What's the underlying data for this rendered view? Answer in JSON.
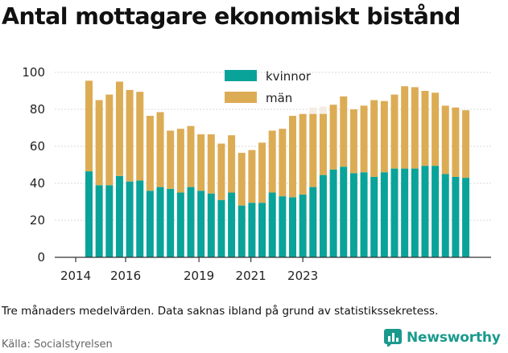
{
  "title": "Antal mottagare ekonomiskt bistånd",
  "note": "Tre månaders medelvärden. Data saknas ibland på grund av statistikssekretess.",
  "source": "Källa: Socialstyrelsen",
  "brand": "Newsworthy",
  "colors": {
    "kvinnor": "#0aa39a",
    "man": "#dcac55",
    "ghost": "#f5ede2",
    "grid": "#d9d9d9",
    "brand": "#1a9a8d"
  },
  "chart_data": {
    "type": "bar",
    "stacked": true,
    "ylim": [
      0,
      100
    ],
    "yticks": [
      0,
      20,
      40,
      60,
      80,
      100
    ],
    "xtick_labels": [
      "2014",
      "2016",
      "2019",
      "2021",
      "2023"
    ],
    "xtick_indices": [
      -1.3,
      3.6,
      10.8,
      15.9,
      21.0
    ],
    "legend": {
      "position": "top-center",
      "entries": [
        "kvinnor",
        "män"
      ]
    },
    "grid": true,
    "series": [
      {
        "name": "kvinnor",
        "values": [
          46.5,
          39,
          39,
          44,
          41,
          41.5,
          36,
          38,
          37,
          35,
          38,
          36,
          34.5,
          31,
          35,
          28,
          29.5,
          29.5,
          35,
          33,
          32.5,
          34,
          38,
          44.5,
          47.5,
          49,
          45.5,
          46,
          43.5,
          46,
          48,
          48,
          48,
          49.5,
          49.5,
          45,
          43.5,
          43
        ]
      },
      {
        "name": "män",
        "values": [
          49,
          46,
          49,
          51,
          49.5,
          48,
          40.5,
          40.5,
          31.5,
          34.5,
          33,
          30.5,
          32,
          30.5,
          31,
          28.5,
          28.5,
          32.5,
          33.5,
          36.5,
          44,
          43.5,
          39.5,
          33,
          35,
          38,
          34.5,
          36,
          41.5,
          38.5,
          40,
          44.5,
          44,
          40.5,
          39.5,
          37,
          37.5,
          36.5
        ]
      }
    ],
    "ghost_values": [
      null,
      null,
      null,
      null,
      null,
      null,
      null,
      null,
      null,
      null,
      null,
      null,
      null,
      null,
      null,
      null,
      null,
      null,
      null,
      null,
      null,
      null,
      81,
      81.5,
      null,
      null,
      null,
      null,
      null,
      null,
      null,
      null,
      null,
      null,
      null,
      null,
      null,
      null
    ]
  }
}
